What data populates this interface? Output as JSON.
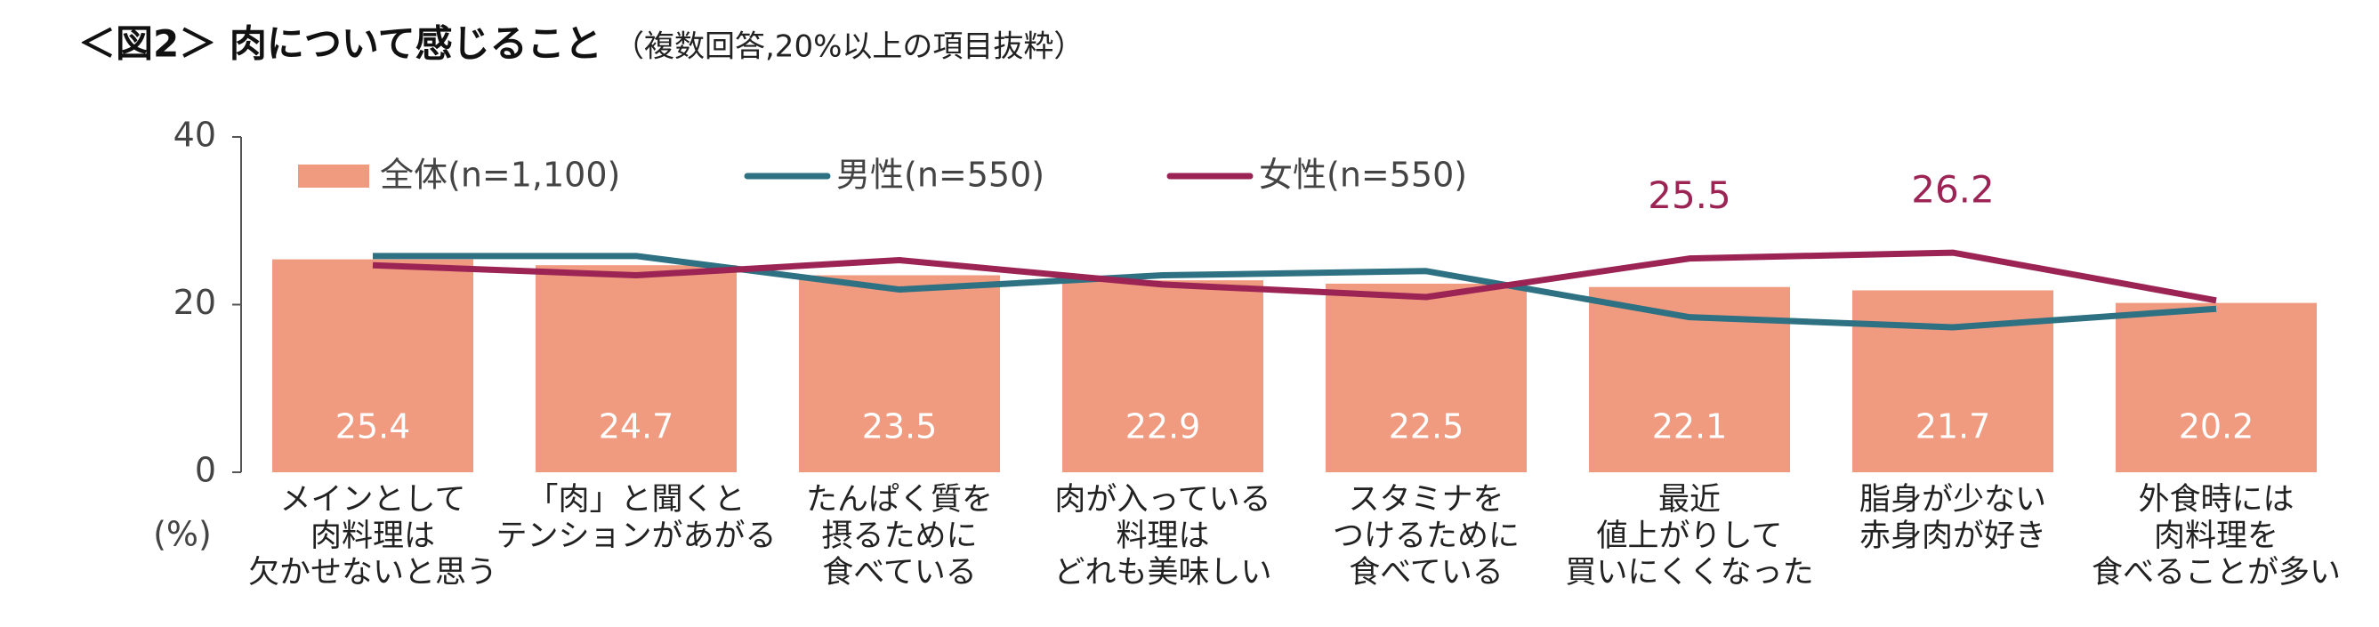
{
  "chart_data": {
    "type": "bar_line",
    "title": "＜図2＞ 肉について感じること",
    "subtitle": "（複数回答,20%以上の項目抜粋）",
    "y_unit": "(%)",
    "categories": [
      [
        "メインとして",
        "肉料理は",
        "欠かせないと思う"
      ],
      [
        "「肉」と聞くと",
        "テンションがあがる"
      ],
      [
        "たんぱく質を",
        "摂るために",
        "食べている"
      ],
      [
        "肉が入っている",
        "料理は",
        "どれも美味しい"
      ],
      [
        "スタミナを",
        "つけるために",
        "食べている"
      ],
      [
        "最近",
        "値上がりして",
        "買いにくくなった"
      ],
      [
        "脂身が少ない",
        "赤身肉が好き"
      ],
      [
        "外食時には",
        "肉料理を",
        "食べることが多い"
      ]
    ],
    "ylim": [
      0,
      40
    ],
    "yticks": [
      0,
      20,
      40
    ],
    "series": [
      {
        "name": "全体(n=1,100)",
        "kind": "bar",
        "color": "#f09a80",
        "values": [
          25.4,
          24.7,
          23.5,
          22.9,
          22.5,
          22.1,
          21.7,
          20.2
        ],
        "show_labels": [
          0,
          1,
          2,
          3,
          4,
          5,
          6,
          7
        ],
        "label_color": "#ffffff"
      },
      {
        "name": "男性(n=550)",
        "kind": "line",
        "color": "#2e7182",
        "values": [
          25.8,
          25.8,
          21.8,
          23.5,
          24.0,
          18.5,
          17.3,
          19.5
        ],
        "show_labels": []
      },
      {
        "name": "女性(n=550)",
        "kind": "line",
        "color": "#9b2454",
        "values": [
          24.7,
          23.5,
          25.3,
          22.4,
          20.9,
          25.5,
          26.2,
          20.5
        ],
        "show_labels": [
          5,
          6
        ],
        "label_color": "#9b2454"
      }
    ]
  }
}
